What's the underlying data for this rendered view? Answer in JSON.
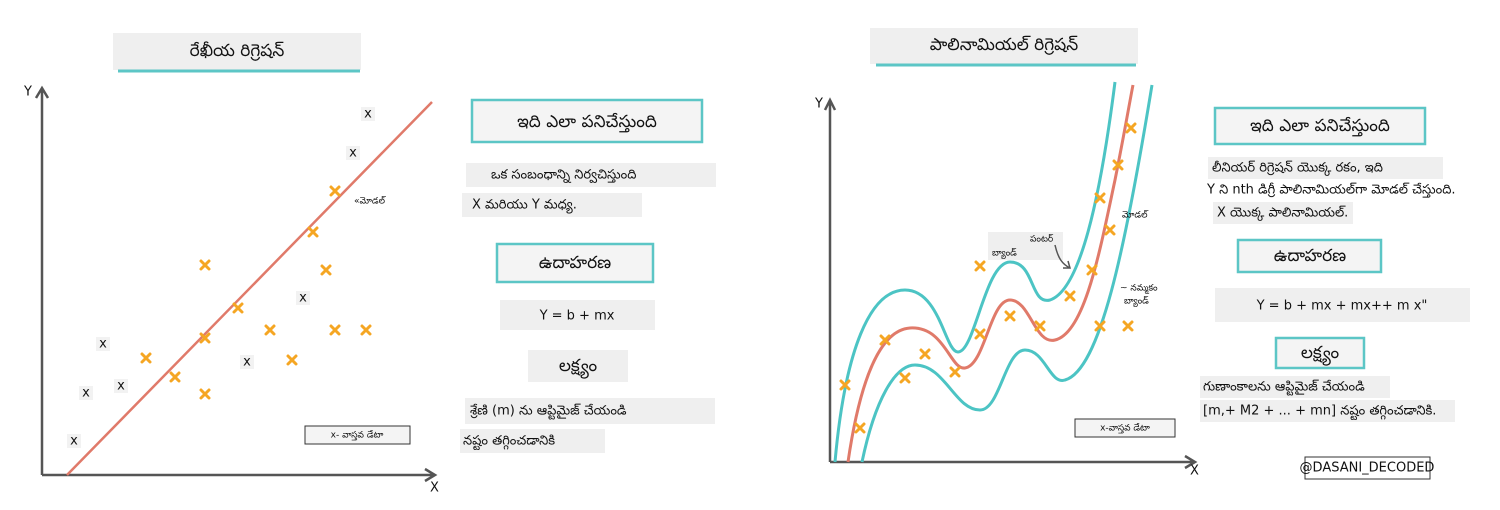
{
  "linear": {
    "title": "రేఖీయ రిగ్రెషన్",
    "y_axis": "Y",
    "x_axis": "X",
    "model_label": "«మోడల్",
    "legend": "x- వాస్తవ డేటా",
    "markers": [
      "x",
      "x",
      "x",
      "x",
      "x",
      "x",
      "x",
      "x"
    ],
    "how_heading": "ఇది ఎలా పనిచేస్తుంది",
    "how_lines": [
      "ఒక సంబంధాన్ని నిర్వచిస్తుంది",
      "X మరియు Y మధ్య."
    ],
    "example_heading": "ఉదాహరణ",
    "formula": "Y = b + mx",
    "goal_heading": "లక్ష్యం",
    "goal_lines": [
      "శ్రేణి (m) ను ఆప్టిమైజ్ చేయండి",
      "నష్టం తగ్గించడానికి"
    ]
  },
  "polynomial": {
    "title": "పాలినామియల్ రిగ్రెషన్",
    "y_axis": "Y",
    "x_axis": "X",
    "center_band": [
      "పంటర్",
      "బ్యాండ్"
    ],
    "model_label": "మోడల్",
    "confidence_band": [
      "~ నమ్మకం",
      "బ్యాండ్"
    ],
    "legend": "x-వాస్తవ డేటా",
    "how_heading": "ఇది ఎలా పనిచేస్తుంది",
    "how_lines": [
      "లీనియర్ రిగ్రెషన్ యొక్క రకం, ఇది",
      "Y ని nth డిగ్రీ పాలినామియల్‌గా మోడల్ చేస్తుంది.",
      "X యొక్క పాలినామియల్."
    ],
    "example_heading": "ఉదాహరణ",
    "formula": "Y = b + mx + mx++ m x\"",
    "goal_heading": "లక్ష్యం",
    "goal_lines": [
      "గుణాంకాలను ఆప్టిమైజ్ చేయండి",
      "[m,+ M2 + ... + mn] నష్టం తగ్గించడానికి."
    ]
  },
  "credit": "@DASANI_DECODED"
}
